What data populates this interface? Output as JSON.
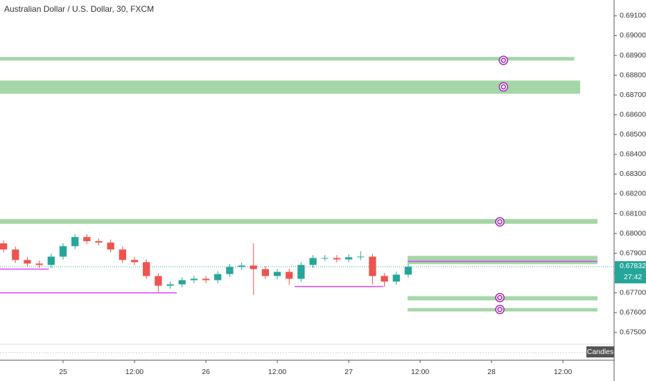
{
  "chart_data": {
    "type": "candlestick",
    "title": "Australian Dollar / U.S. Dollar, 30, FXCM",
    "x": [
      -10,
      -8,
      -6,
      -4,
      -2,
      0,
      2,
      4,
      6,
      8,
      10,
      12,
      14,
      16,
      18,
      20,
      22,
      24,
      26,
      28,
      30,
      32,
      34,
      36,
      38,
      40,
      42,
      44,
      46,
      48,
      50,
      52,
      54,
      56,
      58
    ],
    "open": [
      0.6795,
      0.67919,
      0.67866,
      0.67848,
      0.67841,
      0.67883,
      0.67936,
      0.67982,
      0.67961,
      0.67954,
      0.67919,
      0.67866,
      0.67855,
      0.67785,
      0.67736,
      0.67743,
      0.67764,
      0.67771,
      0.67764,
      0.67795,
      0.67831,
      0.67838,
      0.6782,
      0.67785,
      0.67806,
      0.67771,
      0.67841,
      0.67876,
      0.67876,
      0.67869,
      0.6788,
      0.67883,
      0.67785,
      0.67757,
      0.67792
    ],
    "high": [
      0.67965,
      0.67934,
      0.67881,
      0.67863,
      0.67898,
      0.67951,
      0.67997,
      0.67997,
      0.67976,
      0.67969,
      0.67934,
      0.67881,
      0.6787,
      0.678,
      0.67758,
      0.67779,
      0.67786,
      0.67786,
      0.6781,
      0.67846,
      0.67853,
      0.6795,
      0.67835,
      0.67821,
      0.67821,
      0.67856,
      0.67891,
      0.67891,
      0.67891,
      0.67895,
      0.6791,
      0.67898,
      0.678,
      0.67807,
      0.67847
    ],
    "low": [
      0.67904,
      0.67851,
      0.67833,
      0.67826,
      0.67826,
      0.67868,
      0.67921,
      0.67946,
      0.67939,
      0.67904,
      0.67851,
      0.6784,
      0.6777,
      0.677,
      0.67721,
      0.67728,
      0.67749,
      0.67749,
      0.67749,
      0.6778,
      0.67816,
      0.6769,
      0.6777,
      0.6777,
      0.6774,
      0.67756,
      0.67826,
      0.67861,
      0.67854,
      0.67854,
      0.67865,
      0.67742,
      0.6773,
      0.67742,
      0.67777
    ],
    "close": [
      0.67919,
      0.67866,
      0.67848,
      0.67841,
      0.67883,
      0.67936,
      0.67982,
      0.67961,
      0.67954,
      0.67919,
      0.67866,
      0.67855,
      0.67785,
      0.67736,
      0.67743,
      0.67764,
      0.67771,
      0.67764,
      0.67795,
      0.67831,
      0.67838,
      0.6782,
      0.67785,
      0.67806,
      0.67771,
      0.67841,
      0.67876,
      0.67876,
      0.67869,
      0.6788,
      0.67883,
      0.67785,
      0.67757,
      0.67792,
      0.67832
    ],
    "up_color": "#26a69a",
    "down_color": "#ef5350",
    "zones": [
      {
        "x0": -10.6,
        "x1": 85.9,
        "y0": 0.68874,
        "y1": 0.68892
      },
      {
        "x0": -10.6,
        "x1": 86.9,
        "y0": 0.68706,
        "y1": 0.68773
      },
      {
        "x0": -10.6,
        "x1": 89.8,
        "y0": 0.68049,
        "y1": 0.68073
      },
      {
        "x0": 57.9,
        "x1": 89.8,
        "y0": 0.67845,
        "y1": 0.67887
      },
      {
        "x0": 57.9,
        "x1": 89.8,
        "y0": 0.67662,
        "y1": 0.67683
      },
      {
        "x0": 57.9,
        "x1": 89.8,
        "y0": 0.67606,
        "y1": 0.67623
      }
    ],
    "zone_color": "#a5d6a7",
    "levels": [
      {
        "x0": -10.6,
        "x1": -2.4,
        "y": 0.6782
      },
      {
        "x0": -10.6,
        "x1": 19.1,
        "y": 0.677
      },
      {
        "x0": 38.9,
        "x1": 53.8,
        "y": 0.67732
      },
      {
        "x0": 57.9,
        "x1": 89.8,
        "y": 0.67859
      }
    ],
    "level_color": "#e040fb",
    "markers": [
      {
        "x": 74.0,
        "y": 0.68875
      },
      {
        "x": 74.0,
        "y": 0.68741
      },
      {
        "x": 73.4,
        "y": 0.68059
      },
      {
        "x": 73.4,
        "y": 0.67676
      },
      {
        "x": 73.4,
        "y": 0.67616
      }
    ],
    "marker_color": "#9c27b0",
    "last_price": {
      "value": 0.67832,
      "label": "0.67832"
    },
    "countdown": "27:42",
    "xlim": [
      -10.6,
      92.6
    ],
    "ylim": [
      0.6744,
      0.6918
    ],
    "xticks": [
      {
        "value": 0,
        "label": "25"
      },
      {
        "value": 12,
        "label": "12:00"
      },
      {
        "value": 24,
        "label": "26"
      },
      {
        "value": 36,
        "label": "12:00"
      },
      {
        "value": 48,
        "label": "27"
      },
      {
        "value": 60,
        "label": "12:00"
      },
      {
        "value": 72,
        "label": "28"
      },
      {
        "value": 84,
        "label": "12:00"
      }
    ],
    "yticks": [
      {
        "value": 0.675,
        "label": "0.67500"
      },
      {
        "value": 0.676,
        "label": "0.67600"
      },
      {
        "value": 0.677,
        "label": "0.67700"
      },
      {
        "value": 0.678,
        "label": "0.67800"
      },
      {
        "value": 0.679,
        "label": "0.67900"
      },
      {
        "value": 0.68,
        "label": "0.68000"
      },
      {
        "value": 0.681,
        "label": "0.68100"
      },
      {
        "value": 0.682,
        "label": "0.68200"
      },
      {
        "value": 0.683,
        "label": "0.68300"
      },
      {
        "value": 0.684,
        "label": "0.68400"
      },
      {
        "value": 0.685,
        "label": "0.68500"
      },
      {
        "value": 0.686,
        "label": "0.68600"
      },
      {
        "value": 0.687,
        "label": "0.68700"
      },
      {
        "value": 0.688,
        "label": "0.68800"
      },
      {
        "value": 0.689,
        "label": "0.68900"
      },
      {
        "value": 0.69,
        "label": "0.69000"
      },
      {
        "value": 0.691,
        "label": "0.69100"
      }
    ],
    "chart_style_button": "Candles"
  }
}
